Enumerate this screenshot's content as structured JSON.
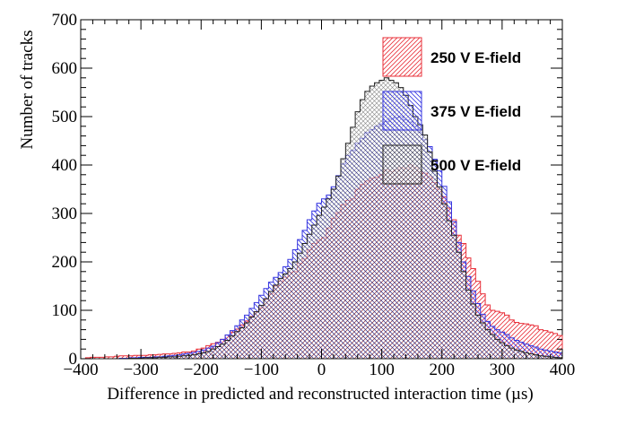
{
  "chart_data": {
    "type": "histogram",
    "xlabel": "Difference in predicted and reconstructed interaction time (µs)",
    "ylabel": "Number of tracks",
    "xlim": [
      -400,
      400
    ],
    "ylim": [
      0,
      700
    ],
    "xticks": [
      -400,
      -300,
      -200,
      -100,
      0,
      100,
      200,
      300,
      400
    ],
    "xtick_labels": [
      "−400",
      "−300",
      "−200",
      "−100",
      "0",
      "100",
      "200",
      "300",
      "400"
    ],
    "yticks": [
      0,
      100,
      200,
      300,
      400,
      500,
      600,
      700
    ],
    "ytick_labels": [
      "0",
      "100",
      "200",
      "300",
      "400",
      "500",
      "600",
      "700"
    ],
    "bin_edges_range": [
      -400,
      400
    ],
    "bin_width": 8,
    "legend_position": "top-right",
    "series": [
      {
        "name": "250 V E-field",
        "color": "#e8303a",
        "hatch": "diagonal-right",
        "values": [
          0,
          2,
          3,
          3,
          3,
          4,
          4,
          5,
          6,
          6,
          6,
          7,
          7,
          7,
          8,
          8,
          9,
          10,
          10,
          11,
          12,
          14,
          14,
          16,
          20,
          22,
          27,
          31,
          34,
          40,
          49,
          55,
          61,
          70,
          78,
          87,
          97,
          105,
          123,
          134,
          150,
          160,
          168,
          178,
          180,
          197,
          207,
          225,
          238,
          245,
          250,
          270,
          290,
          302,
          318,
          327,
          330,
          350,
          360,
          367,
          373,
          375,
          380,
          390,
          386,
          390,
          395,
          393,
          400,
          395,
          386,
          383,
          376,
          364,
          350,
          334,
          311,
          287,
          255,
          238,
          208,
          186,
          160,
          134,
          111,
          100,
          98,
          95,
          90,
          80,
          75,
          73,
          72,
          70,
          68,
          60,
          58,
          55,
          52,
          48
        ]
      },
      {
        "name": "375 V E-field",
        "color": "#3535e0",
        "hatch": "diagonal-left",
        "values": [
          0,
          0,
          0,
          0,
          0,
          0,
          0,
          0,
          1,
          1,
          2,
          2,
          3,
          3,
          3,
          4,
          4,
          5,
          6,
          7,
          8,
          10,
          11,
          13,
          15,
          18,
          22,
          26,
          33,
          40,
          49,
          58,
          68,
          80,
          90,
          104,
          116,
          131,
          145,
          158,
          168,
          178,
          190,
          205,
          225,
          246,
          265,
          287,
          305,
          321,
          330,
          338,
          355,
          378,
          402,
          420,
          430,
          445,
          455,
          467,
          473,
          480,
          485,
          490,
          495,
          498,
          500,
          493,
          489,
          480,
          468,
          452,
          438,
          412,
          388,
          356,
          324,
          283,
          240,
          200,
          170,
          140,
          114,
          92,
          77,
          67,
          60,
          55,
          50,
          43,
          38,
          34,
          30,
          27,
          24,
          20,
          18,
          16,
          14,
          12
        ]
      },
      {
        "name": "500 V E-field",
        "color": "#222222",
        "hatch": "cross",
        "values": [
          0,
          0,
          0,
          0,
          0,
          0,
          0,
          0,
          0,
          0,
          1,
          1,
          1,
          2,
          2,
          2,
          3,
          3,
          4,
          4,
          5,
          6,
          7,
          8,
          10,
          12,
          15,
          20,
          25,
          30,
          38,
          47,
          56,
          64,
          74,
          86,
          97,
          110,
          124,
          139,
          152,
          166,
          175,
          186,
          200,
          218,
          238,
          257,
          276,
          296,
          313,
          330,
          350,
          377,
          413,
          445,
          478,
          510,
          535,
          552,
          563,
          570,
          575,
          580,
          575,
          570,
          560,
          544,
          523,
          500,
          483,
          462,
          427,
          387,
          355,
          320,
          285,
          255,
          220,
          180,
          142,
          113,
          90,
          74,
          60,
          50,
          40,
          33,
          27,
          22,
          18,
          15,
          12,
          10,
          8,
          6,
          5,
          4,
          3,
          2
        ]
      }
    ]
  }
}
